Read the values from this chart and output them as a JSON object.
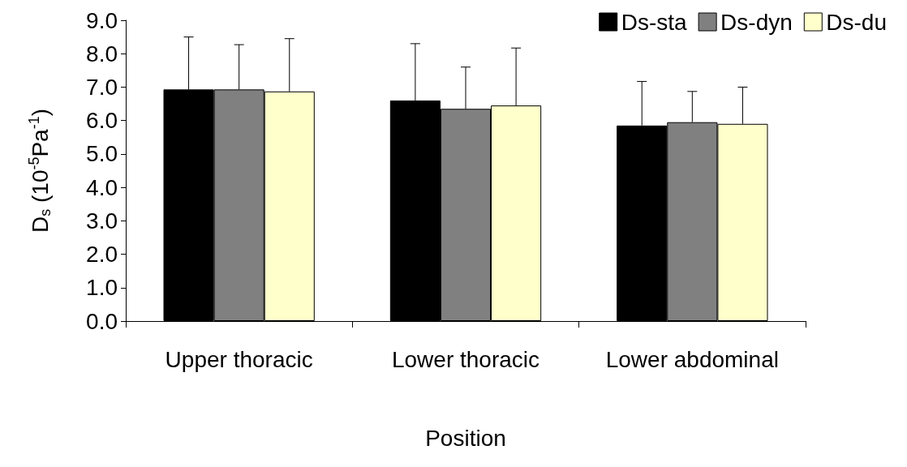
{
  "chart_data": {
    "type": "bar",
    "xlabel": "Position",
    "ylabel": "D$_{s}$ (10$^{-5}$Pa$^{-1}$)",
    "categories": [
      "Upper thoracic",
      "Lower thoracic",
      "Lower abdominal"
    ],
    "series": [
      {
        "name": "Ds-sta",
        "color": "#000000",
        "values": [
          6.93,
          6.6,
          5.85
        ],
        "errors": [
          [
            6.93,
            8.5
          ],
          [
            6.6,
            8.3
          ],
          [
            5.85,
            7.17
          ]
        ]
      },
      {
        "name": "Ds-dyn",
        "color": "#808080",
        "values": [
          6.93,
          6.35,
          5.95
        ],
        "errors": [
          [
            6.93,
            8.27
          ],
          [
            6.35,
            7.6
          ],
          [
            5.95,
            6.87
          ]
        ]
      },
      {
        "name": "Ds-du",
        "color": "#ffffcc",
        "values": [
          6.87,
          6.45,
          5.9
        ],
        "errors": [
          [
            6.87,
            8.45
          ],
          [
            6.45,
            8.17
          ],
          [
            5.9,
            7.0
          ]
        ]
      }
    ],
    "ylim": [
      0,
      9
    ],
    "yticks": [
      {
        "value": 0,
        "label": "0.0"
      },
      {
        "value": 1,
        "label": "1.0"
      },
      {
        "value": 2,
        "label": "2.0"
      },
      {
        "value": 3,
        "label": "3.0"
      },
      {
        "value": 4,
        "label": "4.0"
      },
      {
        "value": 5,
        "label": "5.0"
      },
      {
        "value": 6,
        "label": "6.0"
      },
      {
        "value": 7,
        "label": "7.0"
      },
      {
        "value": 8,
        "label": "8.0"
      },
      {
        "value": 9,
        "label": "9.0"
      }
    ],
    "grid": false,
    "legend": "top right"
  }
}
